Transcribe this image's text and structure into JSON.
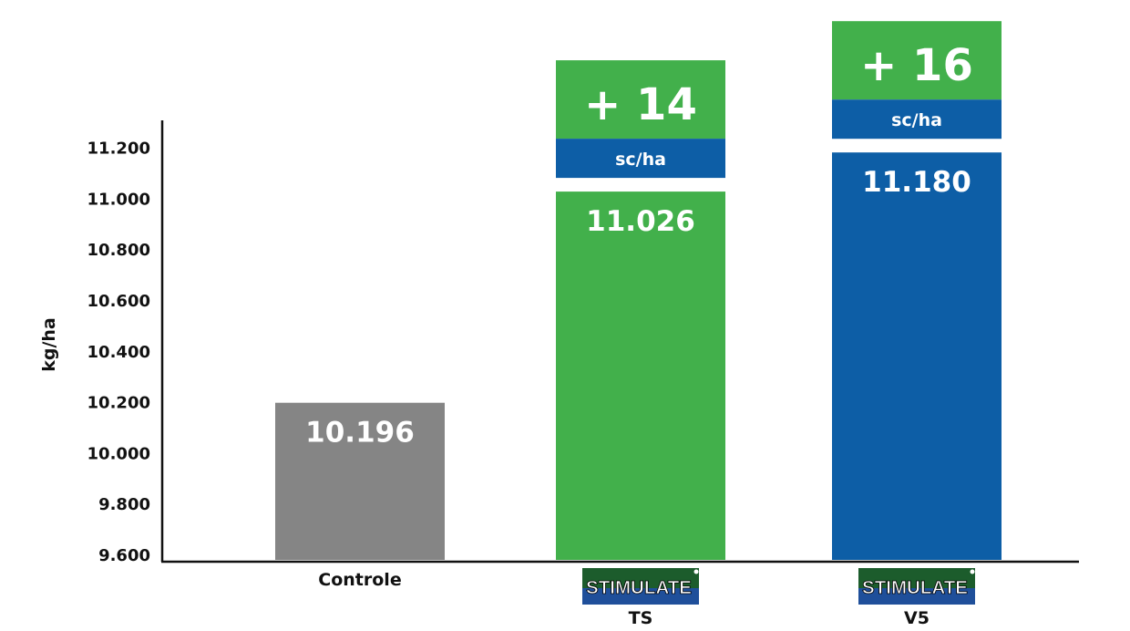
{
  "chart_data": {
    "type": "bar",
    "ylabel": "kg/ha",
    "ylim": [
      9600,
      11300
    ],
    "yticks": [
      "9.600",
      "9.800",
      "10.000",
      "10.200",
      "10.400",
      "10.600",
      "10.800",
      "11.000",
      "11.200"
    ],
    "ytick_values": [
      9600,
      9800,
      10000,
      10200,
      10400,
      10600,
      10800,
      11000,
      11200
    ],
    "categories": [
      {
        "label": "Controle",
        "logo": "",
        "sub": ""
      },
      {
        "label": "",
        "logo": "STIMULATE",
        "sub": "TS"
      },
      {
        "label": "",
        "logo": "STIMULATE",
        "sub": "V5"
      }
    ],
    "values": [
      10196,
      11026,
      11180
    ],
    "value_labels": [
      "10.196",
      "11.026",
      "11.180"
    ],
    "gains": [
      null,
      {
        "value": 14,
        "label": "+ 14",
        "unit": "sc/ha"
      },
      {
        "value": 16,
        "label": "+ 16",
        "unit": "sc/ha"
      }
    ],
    "colors": {
      "bars": [
        "#858585",
        "#42b04b",
        "#0d5ea6"
      ],
      "gain_top": "#42b04b",
      "gain_band": "#0d5ea6",
      "axis": "#111111",
      "logo_bg": "#1c5c2c",
      "logo_band": "#1f4f9a"
    }
  }
}
